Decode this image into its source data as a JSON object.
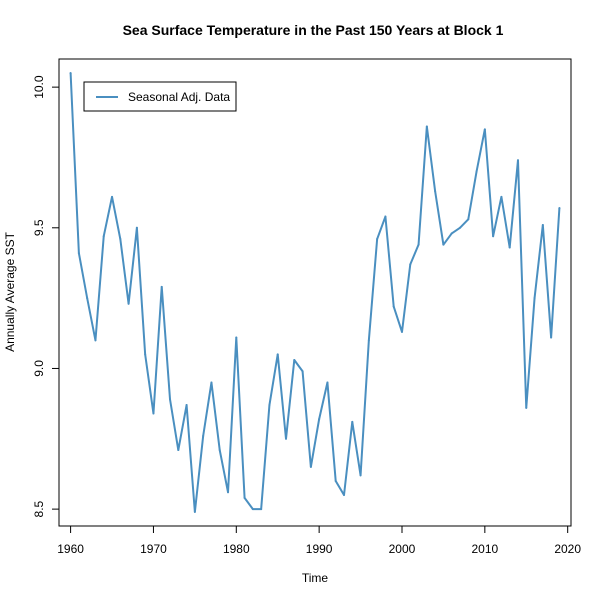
{
  "chart_data": {
    "type": "line",
    "title": "Sea Surface Temperature in the Past 150 Years at Block 1",
    "xlabel": "Time",
    "ylabel": "Annually Average SST",
    "xlim": [
      1958.6,
      2020.4
    ],
    "ylim": [
      8.44,
      10.1
    ],
    "xticks": [
      1960,
      1970,
      1980,
      1990,
      2000,
      2010,
      2020
    ],
    "yticks": [
      8.5,
      9.0,
      9.5,
      10.0
    ],
    "xtick_labels": [
      "1960",
      "1970",
      "1980",
      "1990",
      "2000",
      "2010",
      "2020"
    ],
    "ytick_labels": [
      "8.5",
      "9.0",
      "9.5",
      "10.0"
    ],
    "grid": false,
    "legend_position": "top-left",
    "series": [
      {
        "name": "Seasonal Adj. Data",
        "color": "#4a8fc0",
        "x": [
          1960,
          1961,
          1962,
          1963,
          1964,
          1965,
          1966,
          1967,
          1968,
          1969,
          1970,
          1971,
          1972,
          1973,
          1974,
          1975,
          1976,
          1977,
          1978,
          1979,
          1980,
          1981,
          1982,
          1983,
          1984,
          1985,
          1986,
          1987,
          1988,
          1989,
          1990,
          1991,
          1992,
          1993,
          1994,
          1995,
          1996,
          1997,
          1998,
          1999,
          2000,
          2001,
          2002,
          2003,
          2004,
          2005,
          2006,
          2007,
          2008,
          2009,
          2010,
          2011,
          2012,
          2013,
          2014,
          2015,
          2016,
          2017,
          2018,
          2019
        ],
        "values": [
          10.05,
          9.41,
          9.25,
          9.1,
          9.47,
          9.61,
          9.46,
          9.23,
          9.5,
          9.05,
          8.84,
          9.29,
          8.89,
          8.71,
          8.87,
          8.49,
          8.76,
          8.95,
          8.71,
          8.56,
          9.11,
          8.54,
          8.5,
          8.5,
          8.87,
          9.05,
          8.75,
          9.03,
          8.99,
          8.65,
          8.82,
          8.95,
          8.6,
          8.55,
          8.81,
          8.62,
          9.1,
          9.46,
          9.54,
          9.22,
          9.13,
          9.37,
          9.44,
          9.86,
          9.63,
          9.44,
          9.48,
          9.5,
          9.53,
          9.7,
          9.85,
          9.47,
          9.61,
          9.43,
          9.74,
          8.86,
          9.25,
          9.51,
          9.11,
          9.57
        ]
      }
    ]
  }
}
